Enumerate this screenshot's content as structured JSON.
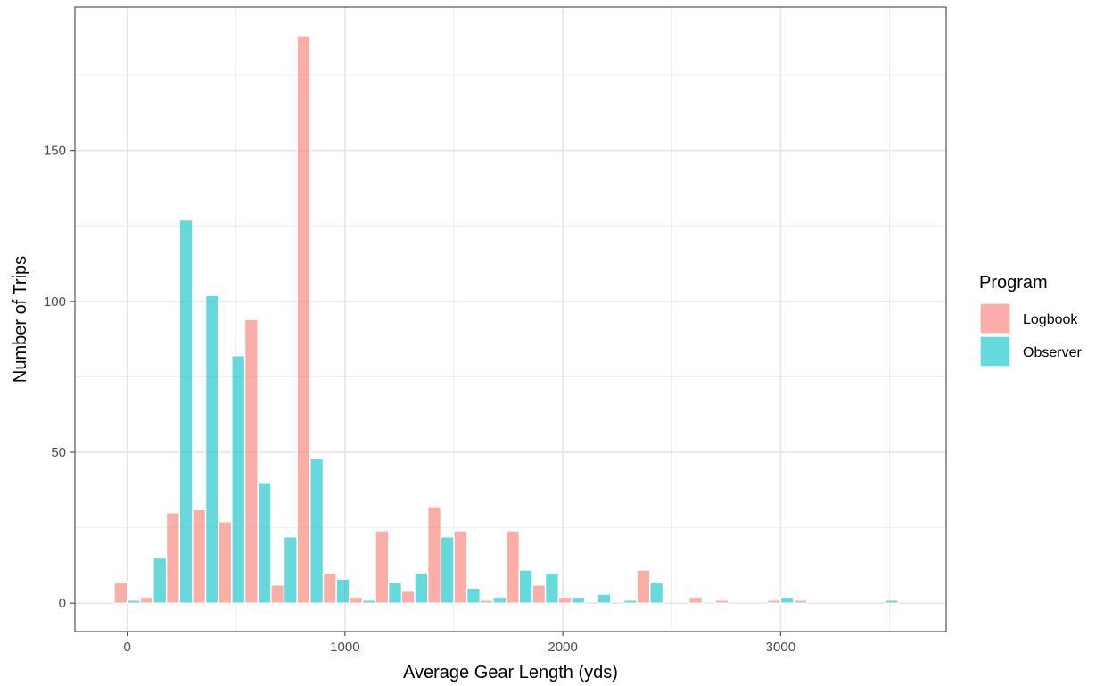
{
  "chart_data": {
    "type": "bar",
    "title": "",
    "xlabel": "Average Gear Length (yds)",
    "ylabel": "Number of Trips",
    "xlim": [
      -240,
      3760
    ],
    "ylim": [
      -9.4,
      197.5
    ],
    "xticks": [
      0,
      1000,
      2000,
      3000
    ],
    "yticks": [
      0,
      50,
      100,
      150
    ],
    "grid": true,
    "bin_width": 120,
    "legend": {
      "title": "Program",
      "position": "right"
    },
    "series": [
      {
        "name": "Logbook",
        "color": "#F8766D",
        "bins": [
          {
            "x": 0,
            "y": 7
          },
          {
            "x": 120,
            "y": 2
          },
          {
            "x": 240,
            "y": 30
          },
          {
            "x": 360,
            "y": 31
          },
          {
            "x": 480,
            "y": 27
          },
          {
            "x": 600,
            "y": 94
          },
          {
            "x": 720,
            "y": 6
          },
          {
            "x": 840,
            "y": 188
          },
          {
            "x": 960,
            "y": 10
          },
          {
            "x": 1080,
            "y": 2
          },
          {
            "x": 1200,
            "y": 24
          },
          {
            "x": 1320,
            "y": 4
          },
          {
            "x": 1440,
            "y": 32
          },
          {
            "x": 1560,
            "y": 24
          },
          {
            "x": 1680,
            "y": 1
          },
          {
            "x": 1800,
            "y": 24
          },
          {
            "x": 1920,
            "y": 6
          },
          {
            "x": 2040,
            "y": 2
          },
          {
            "x": 2400,
            "y": 11
          },
          {
            "x": 2640,
            "y": 2
          },
          {
            "x": 2760,
            "y": 1
          },
          {
            "x": 3000,
            "y": 1
          },
          {
            "x": 3120,
            "y": 1
          }
        ]
      },
      {
        "name": "Observer",
        "color": "#00BFC4",
        "bins": [
          {
            "x": 0,
            "y": 1
          },
          {
            "x": 120,
            "y": 15
          },
          {
            "x": 240,
            "y": 127
          },
          {
            "x": 360,
            "y": 102
          },
          {
            "x": 480,
            "y": 82
          },
          {
            "x": 600,
            "y": 40
          },
          {
            "x": 720,
            "y": 22
          },
          {
            "x": 840,
            "y": 48
          },
          {
            "x": 960,
            "y": 8
          },
          {
            "x": 1080,
            "y": 1
          },
          {
            "x": 1200,
            "y": 7
          },
          {
            "x": 1320,
            "y": 10
          },
          {
            "x": 1440,
            "y": 22
          },
          {
            "x": 1560,
            "y": 5
          },
          {
            "x": 1680,
            "y": 2
          },
          {
            "x": 1800,
            "y": 11
          },
          {
            "x": 1920,
            "y": 10
          },
          {
            "x": 2040,
            "y": 2
          },
          {
            "x": 2160,
            "y": 3
          },
          {
            "x": 2280,
            "y": 1
          },
          {
            "x": 2400,
            "y": 7
          },
          {
            "x": 3000,
            "y": 2
          },
          {
            "x": 3480,
            "y": 1
          }
        ]
      }
    ]
  }
}
